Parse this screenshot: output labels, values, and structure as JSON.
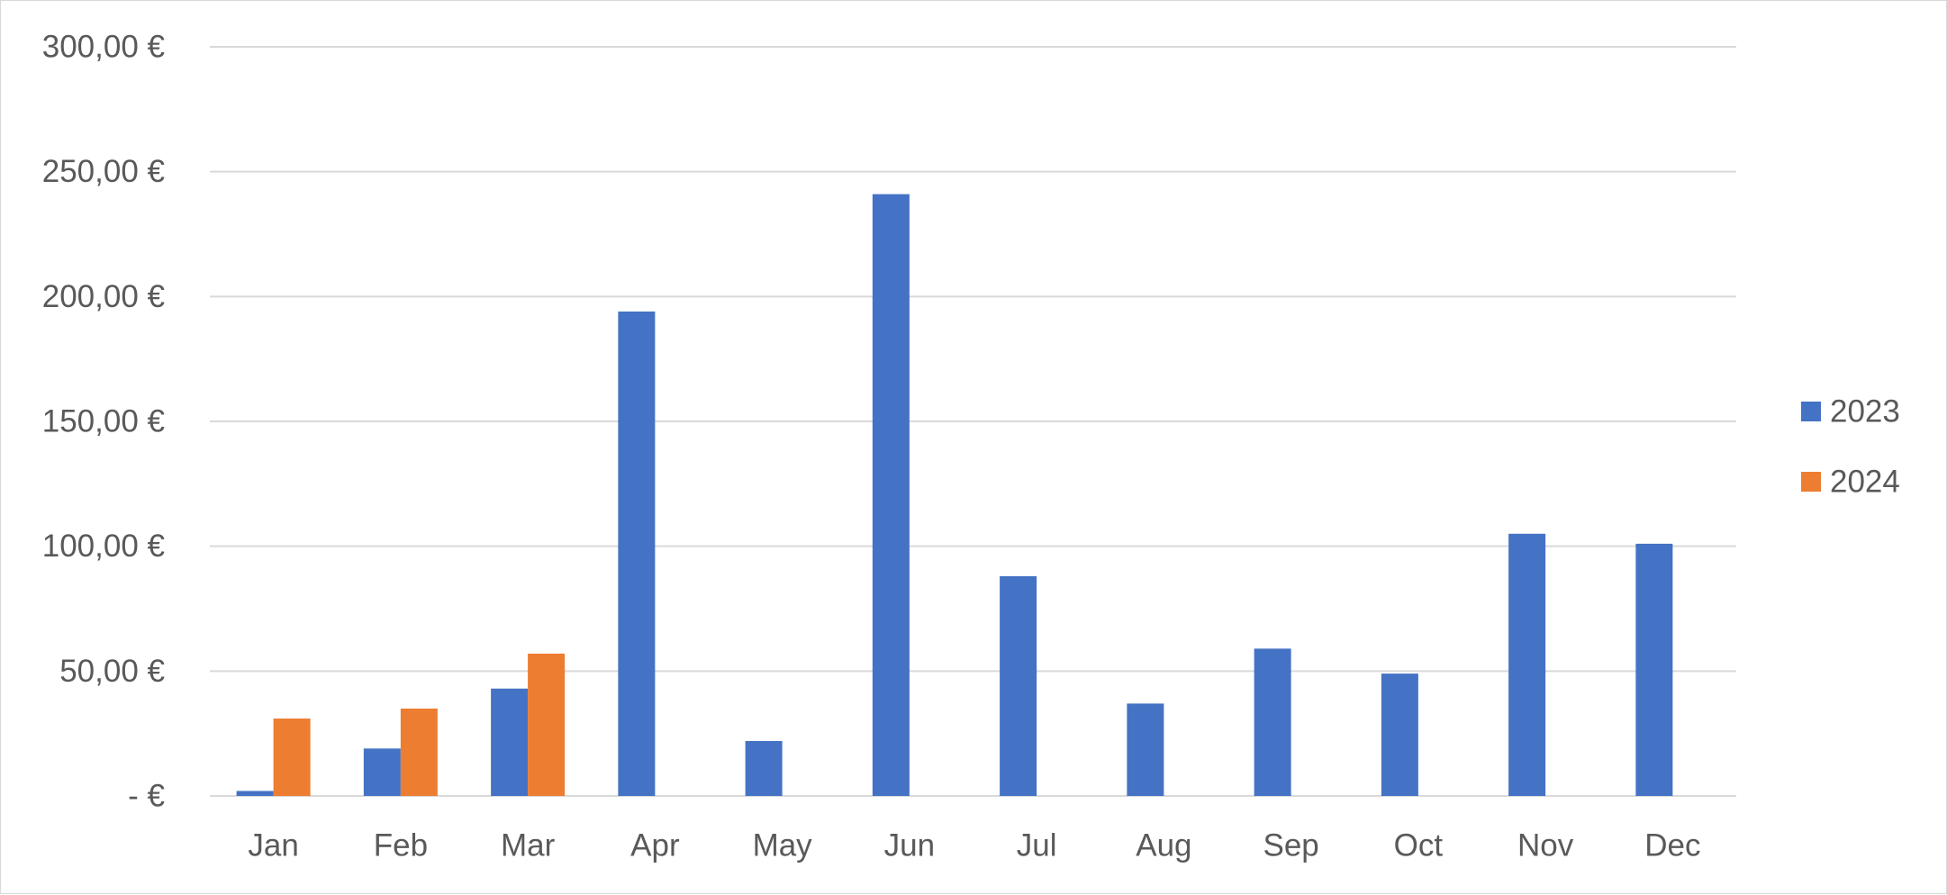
{
  "chart_data": {
    "type": "bar",
    "title": "",
    "xlabel": "",
    "ylabel": "",
    "categories": [
      "Jan",
      "Feb",
      "Mar",
      "Apr",
      "May",
      "Jun",
      "Jul",
      "Aug",
      "Sep",
      "Oct",
      "Nov",
      "Dec"
    ],
    "series": [
      {
        "name": "2023",
        "color": "#4472C4",
        "values": [
          2,
          19,
          43,
          194,
          22,
          241,
          88,
          37,
          59,
          49,
          105,
          101
        ]
      },
      {
        "name": "2024",
        "color": "#ED7D31",
        "values": [
          31,
          35,
          57,
          null,
          null,
          null,
          null,
          null,
          null,
          null,
          null,
          null
        ]
      }
    ],
    "ylim": [
      0,
      300
    ],
    "yticks": [
      0,
      50,
      100,
      150,
      200,
      250,
      300
    ],
    "ytick_labels": [
      "-   €",
      "50,00 €",
      "100,00 €",
      "150,00 €",
      "200,00 €",
      "250,00 €",
      "300,00 €"
    ],
    "grid": true,
    "legend_position": "right"
  }
}
